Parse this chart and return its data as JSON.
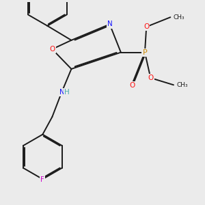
{
  "background_color": "#ebebeb",
  "bond_color": "#1a1a1a",
  "atom_colors": {
    "N": "#1414ff",
    "O": "#ff1414",
    "P": "#cc8800",
    "F": "#cc00cc",
    "H": "#44aaaa",
    "C": "#1a1a1a"
  },
  "fig_width": 3.0,
  "fig_height": 3.0,
  "dpi": 100
}
